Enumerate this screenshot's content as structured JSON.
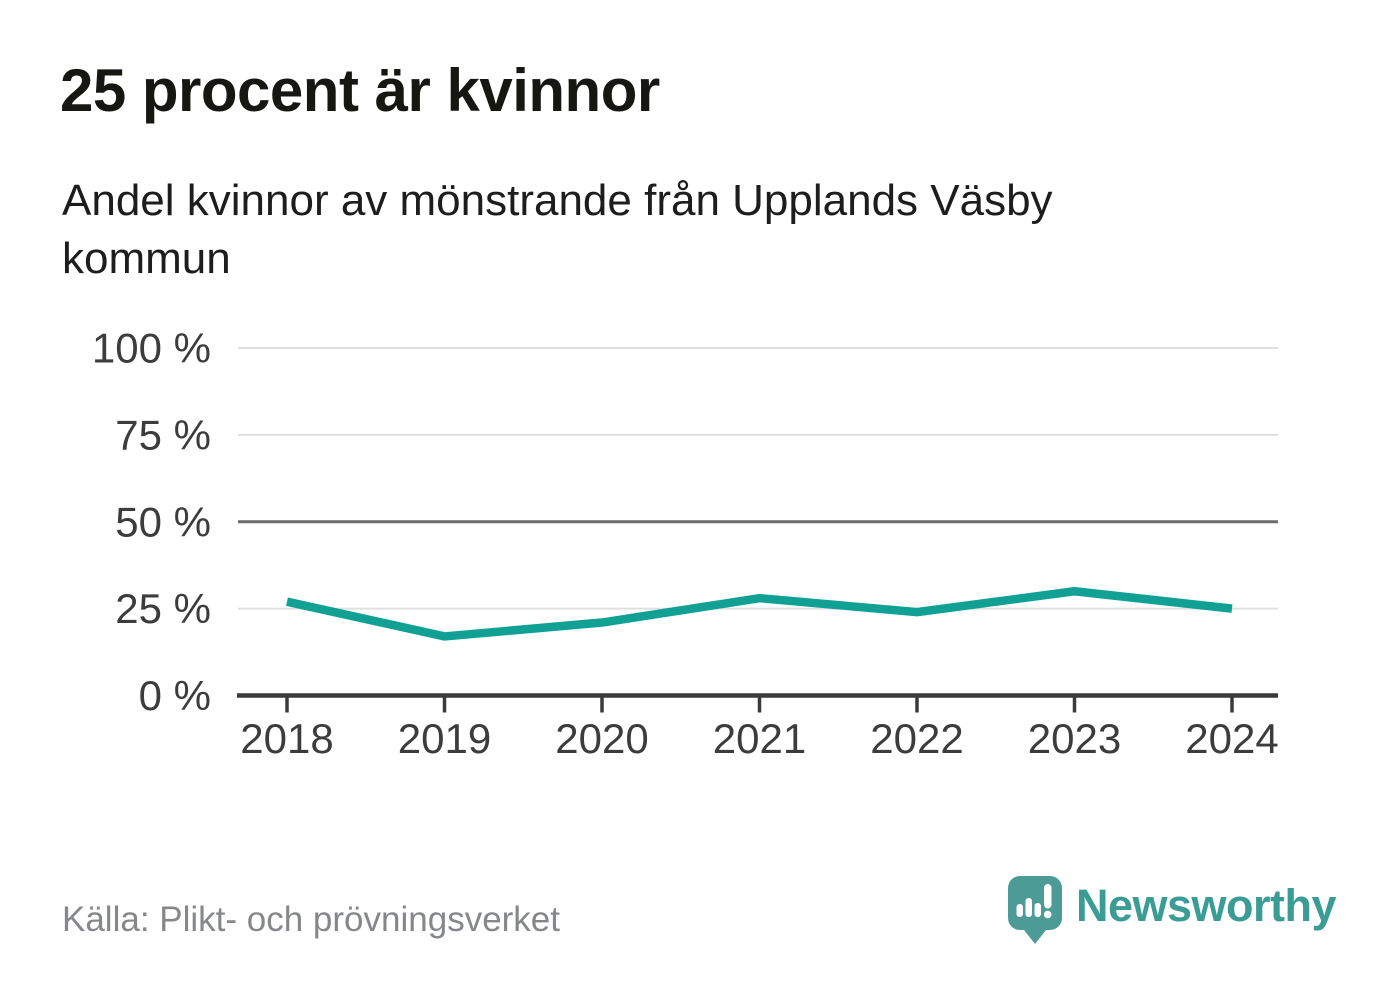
{
  "header": {
    "title": "25 procent är kvinnor",
    "subtitle": "Andel kvinnor av mönstrande från Upplands Väsby kommun"
  },
  "chart_data": {
    "type": "line",
    "categories": [
      "2018",
      "2019",
      "2020",
      "2021",
      "2022",
      "2023",
      "2024"
    ],
    "series": [
      {
        "name": "Andel kvinnor av mönstrande",
        "values": [
          27,
          17,
          21,
          28,
          24,
          30,
          25
        ]
      }
    ],
    "title": "25 procent är kvinnor",
    "subtitle": "Andel kvinnor av mönstrande från Upplands Väsby kommun",
    "xlabel": "",
    "ylabel": "",
    "ylim": [
      0,
      100
    ],
    "yticks": [
      0,
      25,
      50,
      75,
      100
    ],
    "ytick_labels": [
      "0 %",
      "25 %",
      "50 %",
      "75 %",
      "100 %"
    ],
    "emphasized_gridline": 50,
    "grid": "horizontal",
    "legend": "none",
    "line_color": "#11a194",
    "grid_color": "#e0e0e0",
    "emphasized_grid_color": "#6b6b6b",
    "axis_color": "#3a3a3a",
    "tick_label_color": "#3c3c3c"
  },
  "footer": {
    "source": "Källa: Plikt- och prövningsverket",
    "brand": "Newsworthy",
    "brand_color": "#3b9c95",
    "brand_mark_color": "#4c9b96"
  }
}
